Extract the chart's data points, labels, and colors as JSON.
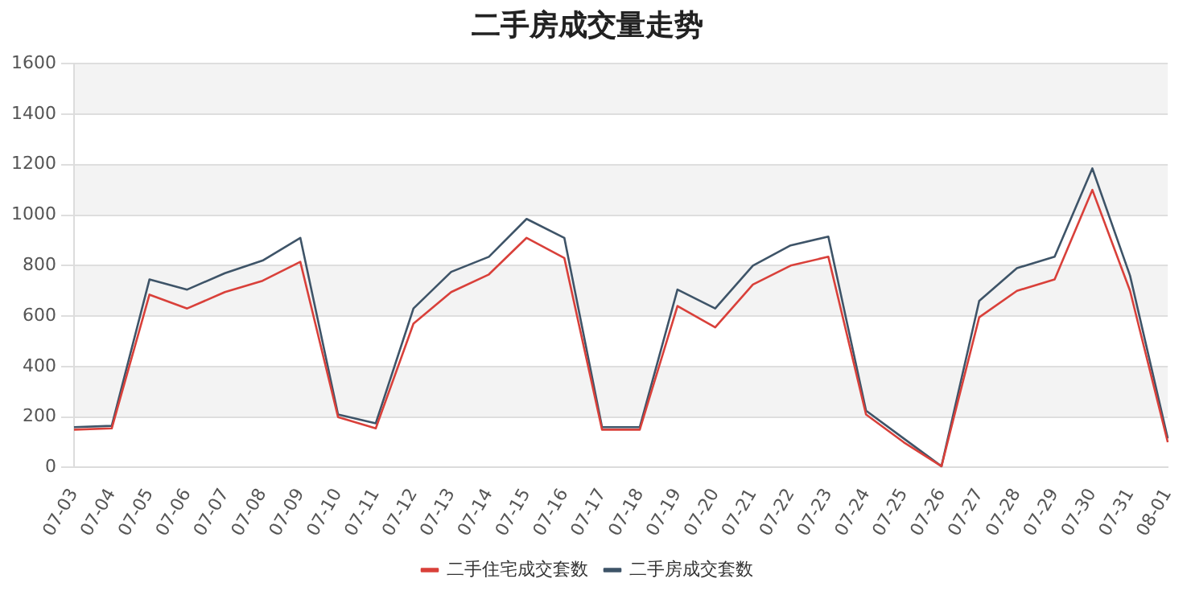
{
  "chart_data": {
    "type": "line",
    "title": "二手房成交量走势",
    "categories": [
      "07-03",
      "07-04",
      "07-05",
      "07-06",
      "07-07",
      "07-08",
      "07-09",
      "07-10",
      "07-11",
      "07-12",
      "07-13",
      "07-14",
      "07-15",
      "07-16",
      "07-17",
      "07-18",
      "07-19",
      "07-20",
      "07-21",
      "07-22",
      "07-23",
      "07-24",
      "07-25",
      "07-26",
      "07-27",
      "07-28",
      "07-29",
      "07-30",
      "07-31",
      "08-01"
    ],
    "series": [
      {
        "name": "二手住宅成交套数",
        "color": "#d9403a",
        "values": [
          150,
          155,
          685,
          630,
          695,
          740,
          815,
          200,
          155,
          570,
          695,
          765,
          910,
          830,
          150,
          150,
          640,
          555,
          725,
          800,
          835,
          210,
          100,
          5,
          595,
          700,
          745,
          1100,
          700,
          100
        ]
      },
      {
        "name": "二手房成交套数",
        "color": "#3e5468",
        "values": [
          160,
          165,
          745,
          705,
          770,
          820,
          910,
          210,
          175,
          630,
          775,
          835,
          985,
          910,
          160,
          160,
          705,
          630,
          800,
          880,
          915,
          225,
          115,
          5,
          660,
          790,
          835,
          1185,
          760,
          115
        ]
      }
    ],
    "ylim": [
      0,
      1600
    ],
    "yticks": [
      0,
      200,
      400,
      600,
      800,
      1000,
      1200,
      1400,
      1600
    ],
    "grid": "y",
    "legend": "bottom",
    "marker": "none",
    "line_style": "solid"
  }
}
